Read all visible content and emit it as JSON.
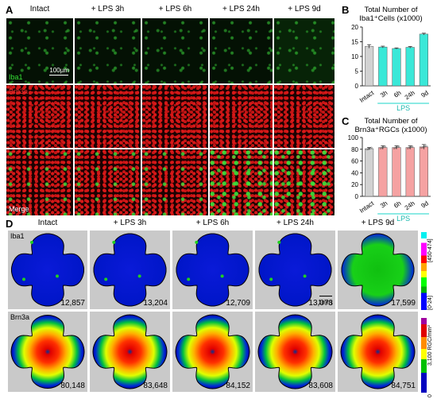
{
  "panels": {
    "A": "A",
    "B": "B",
    "C": "C",
    "D": "D"
  },
  "panelA": {
    "columns": [
      "Intact",
      "+ LPS 3h",
      "+ LPS 6h",
      "+ LPS 24h",
      "+ LPS 9d"
    ],
    "rows": [
      "Iba1",
      "Brn3a",
      "Merge"
    ],
    "row_colors": [
      "#35e035",
      "#e03030",
      "#ffffff"
    ],
    "scale_bar": "100µm"
  },
  "panelD": {
    "columns": [
      "Intact",
      "+ LPS 3h",
      "+ LPS 6h",
      "+ LPS 24h",
      "+ LPS 9d"
    ],
    "row_labels": [
      "Iba1",
      "Brn3a"
    ],
    "iba1_counts": [
      "12,857",
      "13,204",
      "12,709",
      "13,073",
      "17,599"
    ],
    "brn3a_counts": [
      "80,148",
      "83,648",
      "84,152",
      "83,608",
      "84,751"
    ],
    "scale_bar": "1mm",
    "iba1_scale_top": "[450-474]",
    "iba1_scale_bottom": "[0-24]",
    "brn3a_scale_top": "3,100 RGC/mm²",
    "brn3a_scale_bottom": "0"
  },
  "chart_data": [
    {
      "type": "bar",
      "title": "Total Number of Iba1⁺Cells (x1000)",
      "categories": [
        "Intact",
        "3h",
        "6h",
        "24h",
        "9d"
      ],
      "values": [
        13.4,
        13.2,
        12.7,
        13.1,
        17.6
      ],
      "errors": [
        0.6,
        0.3,
        0.2,
        0.3,
        0.3
      ],
      "group_label": "LPS",
      "ylim": [
        0,
        20
      ],
      "yticks": [
        "0",
        "5",
        "10",
        "15",
        "20"
      ],
      "colors": [
        "#d2d2d2",
        "#3ae8d8",
        "#3ae8d8",
        "#3ae8d8",
        "#3ae8d8"
      ]
    },
    {
      "type": "bar",
      "title": "Total Number of Brn3a⁺RGCs (x1000)",
      "categories": [
        "Intact",
        "3h",
        "6h",
        "24h",
        "9d"
      ],
      "values": [
        81,
        83,
        83,
        83,
        84
      ],
      "errors": [
        2,
        3,
        3,
        3,
        4
      ],
      "group_label": "LPS",
      "ylim": [
        0,
        100
      ],
      "yticks": [
        "0",
        "20",
        "40",
        "60",
        "80",
        "100"
      ],
      "colors": [
        "#d2d2d2",
        "#f5a2a2",
        "#f5a2a2",
        "#f5a2a2",
        "#f5a2a2"
      ]
    }
  ]
}
